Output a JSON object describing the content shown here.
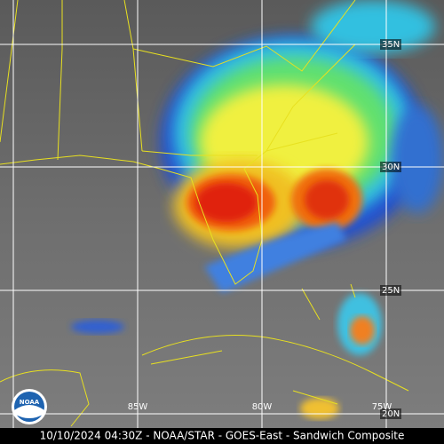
{
  "caption": "10/10/2024 04:30Z - NOAA/STAR - GOES-East - Sandwich Composite",
  "logo": "NOAA",
  "latitude_labels": [
    "35N",
    "30N",
    "25N",
    "20N"
  ],
  "longitude_labels": [
    "85W",
    "80W",
    "75W"
  ]
}
